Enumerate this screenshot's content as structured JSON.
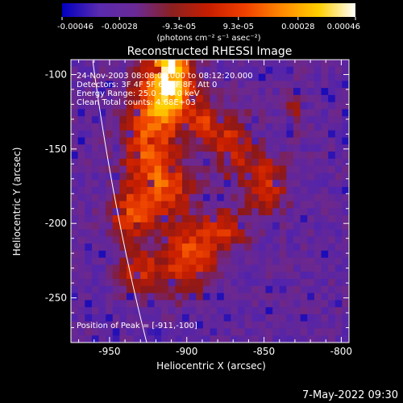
{
  "colorbar": {
    "ticks": [
      "-0.00046",
      "-0.00028",
      "-9.3e-05",
      "9.3e-05",
      "0.00028",
      "0.00046"
    ],
    "tick_values": [
      -0.00046,
      -0.00028,
      -9.3e-05,
      9.3e-05,
      0.00028,
      0.00046
    ],
    "range": [
      -0.00046,
      0.00046
    ],
    "units_label": "(photons cm⁻² s⁻¹ asec⁻²)",
    "colormap": [
      "#0000c0",
      "#5a2ab0",
      "#6a2a96",
      "#8a2020",
      "#c81e00",
      "#f04000",
      "#ff8a00",
      "#ffd000",
      "#ffffff"
    ]
  },
  "chart_data": {
    "type": "heatmap",
    "title": "Reconstructed RHESSI Image",
    "xlabel": "Heliocentric X (arcsec)",
    "ylabel": "Heliocentric Y (arcsec)",
    "xlim": [
      -975,
      -795
    ],
    "ylim": [
      -280,
      -90
    ],
    "x_ticks": [
      -950,
      -900,
      -850,
      -800
    ],
    "x_tick_labels": [
      "-950",
      "-900",
      "-850",
      "-800"
    ],
    "y_ticks": [
      -100,
      -150,
      -200,
      -250
    ],
    "y_tick_labels": [
      "-100",
      "-150",
      "-200",
      "-250"
    ],
    "annotations": [
      "24-Nov-2003 08:08:00.000 to 08:12:20.000",
      "Detectors: 3F 4F 5F 6F 7F 8F, Att 0",
      "Energy Range: 25.0 - 50.0 keV",
      "Clean    Total counts: 4.68E+03"
    ],
    "peak_label": "Position of Peak = [-911,-100]",
    "peak": [
      -911,
      -100
    ],
    "grid": false
  },
  "footer": {
    "date": "7-May-2022 09:30"
  }
}
